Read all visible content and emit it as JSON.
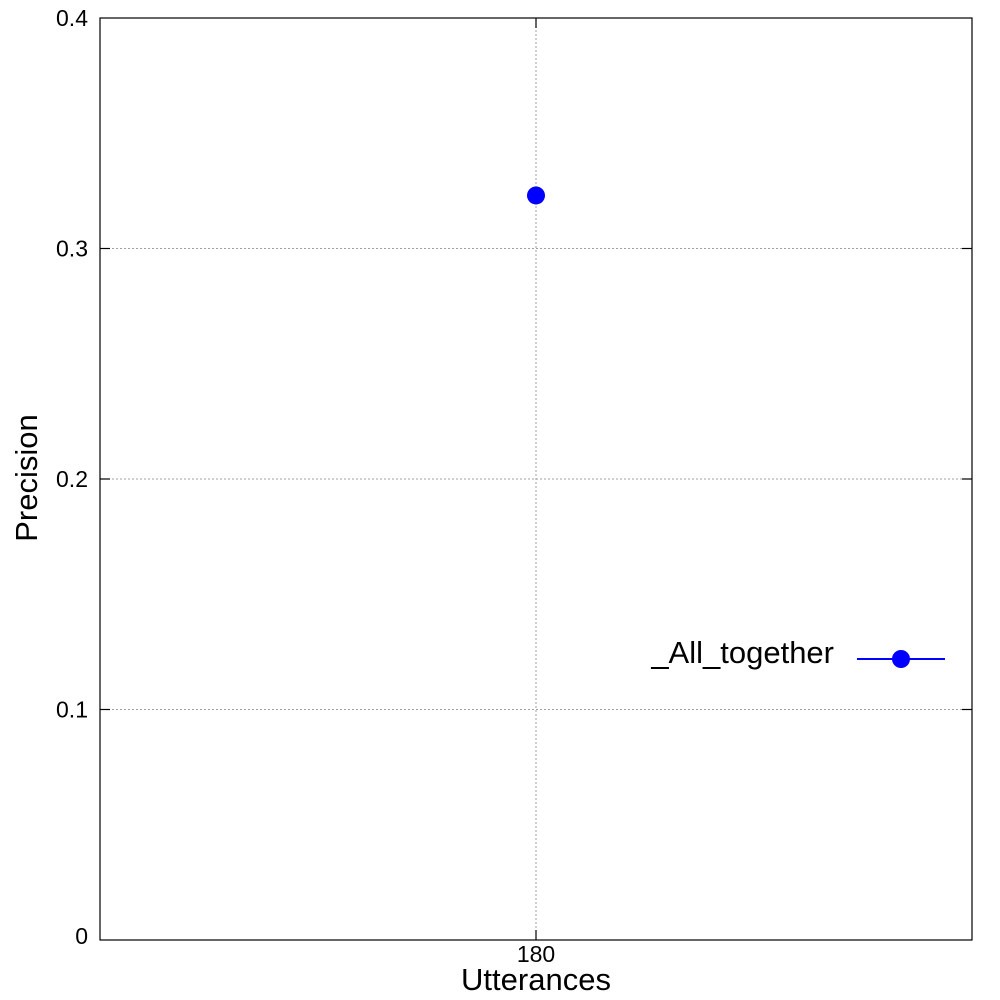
{
  "chart_data": {
    "type": "scatter",
    "title": "",
    "xlabel": "Utterances",
    "ylabel": "Precision",
    "x_ticks": [
      "180"
    ],
    "y_ticks": [
      "0",
      "0.1",
      "0.2",
      "0.3",
      "0.4"
    ],
    "ylim": [
      0,
      0.4
    ],
    "grid": true,
    "legend_position": "right",
    "series": [
      {
        "name": "_All_together",
        "color": "#0000ff",
        "marker": "circle",
        "points": [
          {
            "x": "180",
            "y": 0.323
          }
        ]
      }
    ]
  }
}
